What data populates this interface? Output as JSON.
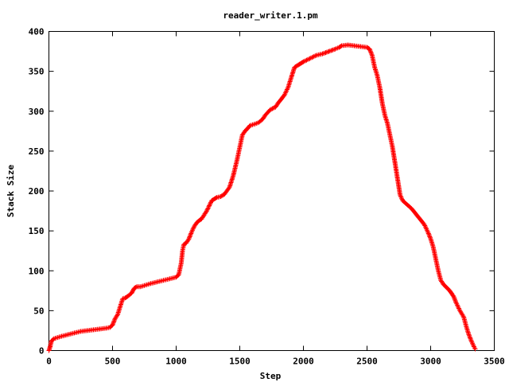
{
  "chart_data": {
    "type": "line",
    "title": "reader_writer.1.pm",
    "xlabel": "Step",
    "ylabel": "Stack Size",
    "xlim": [
      0,
      3500
    ],
    "ylim": [
      0,
      400
    ],
    "xticks": [
      0,
      500,
      1000,
      1500,
      2000,
      2500,
      3000,
      3500
    ],
    "yticks": [
      0,
      50,
      100,
      150,
      200,
      250,
      300,
      350,
      400
    ],
    "grid": false,
    "legend": "none",
    "marker": "plus",
    "series_color": "#ff0000",
    "series": [
      {
        "x": [
          0,
          10,
          20,
          40,
          60,
          100,
          150,
          200,
          250,
          300,
          350,
          400,
          450,
          480,
          500,
          520,
          540,
          560,
          580,
          600,
          620,
          650,
          670,
          690,
          720,
          760,
          800,
          850,
          900,
          950,
          1000,
          1020,
          1040,
          1050,
          1060,
          1080,
          1100,
          1120,
          1140,
          1160,
          1180,
          1200,
          1240,
          1280,
          1300,
          1320,
          1350,
          1380,
          1420,
          1450,
          1480,
          1500,
          1520,
          1540,
          1560,
          1570,
          1580,
          1600,
          1620,
          1650,
          1680,
          1700,
          1740,
          1780,
          1800,
          1850,
          1880,
          1900,
          1930,
          1960,
          1980,
          2000,
          2050,
          2100,
          2150,
          2200,
          2250,
          2280,
          2300,
          2350,
          2400,
          2450,
          2500,
          2520,
          2540,
          2560,
          2580,
          2600,
          2620,
          2640,
          2660,
          2680,
          2700,
          2720,
          2740,
          2760,
          2780,
          2800,
          2850,
          2900,
          2950,
          2980,
          3000,
          3020,
          3040,
          3060,
          3080,
          3100,
          3150,
          3180,
          3200,
          3230,
          3260,
          3280,
          3300,
          3320,
          3340,
          3350
        ],
        "y": [
          0,
          5,
          12,
          15,
          16,
          18,
          20,
          22,
          24,
          25,
          26,
          27,
          28,
          29,
          32,
          40,
          45,
          55,
          65,
          66,
          68,
          72,
          78,
          80,
          80,
          82,
          84,
          86,
          88,
          90,
          92,
          95,
          110,
          125,
          133,
          135,
          140,
          148,
          155,
          160,
          163,
          165,
          175,
          188,
          190,
          192,
          193,
          196,
          205,
          220,
          240,
          255,
          270,
          275,
          278,
          280,
          282,
          283,
          284,
          286,
          290,
          295,
          302,
          305,
          310,
          320,
          330,
          340,
          355,
          358,
          360,
          362,
          366,
          370,
          372,
          375,
          378,
          380,
          382,
          383,
          382,
          381,
          380,
          378,
          370,
          355,
          345,
          330,
          310,
          295,
          285,
          270,
          255,
          235,
          215,
          195,
          188,
          185,
          178,
          168,
          158,
          148,
          140,
          130,
          115,
          100,
          88,
          83,
          75,
          68,
          60,
          50,
          42,
          30,
          20,
          12,
          5,
          2
        ]
      }
    ]
  }
}
